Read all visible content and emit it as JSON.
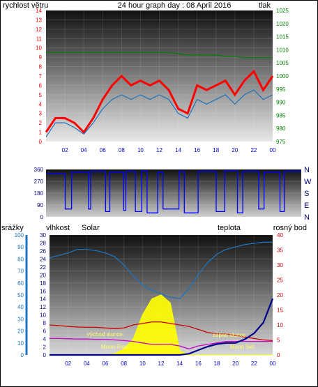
{
  "colors": {
    "wind": "#ff0000",
    "wind_avg": "#1e73be",
    "pressure": "#008000",
    "direction": "#0000ff",
    "rain": "#00008b",
    "humidity": "#1e73be",
    "solar": "#ffff00",
    "temperature": "#cc0000",
    "dewpoint": "#cc00cc",
    "title": "#0000cc",
    "axis_left": "#ff0000",
    "axis_right": "#008000"
  },
  "chart_data": [
    {
      "type": "line",
      "title": "24 hour graph day : 08 April 2016",
      "ylabel_left": "rychlost větru",
      "ylabel_right": "tlak",
      "ylim_left": [
        0,
        14
      ],
      "ylim_right": [
        975,
        1025
      ],
      "left_ticks": [
        "0",
        "1",
        "2",
        "3",
        "4",
        "5",
        "6",
        "7",
        "8",
        "9",
        "10",
        "11",
        "12",
        "13",
        "14"
      ],
      "right_ticks": [
        "975",
        "980",
        "985",
        "990",
        "995",
        "1000",
        "1005",
        "1010",
        "1015",
        "1020",
        "1025"
      ],
      "x_ticks": [
        "02",
        "04",
        "06",
        "08",
        "10",
        "12",
        "14",
        "16",
        "18",
        "20",
        "22",
        "00"
      ],
      "hours": [
        0,
        1,
        2,
        3,
        4,
        5,
        6,
        7,
        8,
        9,
        10,
        11,
        12,
        13,
        14,
        15,
        16,
        17,
        18,
        19,
        20,
        21,
        22,
        23,
        24
      ],
      "series": [
        {
          "name": "rychlost větru",
          "axis": "left",
          "values": [
            1,
            2.5,
            2.5,
            2,
            1,
            2.5,
            4.5,
            6,
            7,
            6,
            6.5,
            6,
            6.5,
            5.5,
            3.5,
            3,
            6,
            5.5,
            6,
            6.5,
            5,
            6.5,
            7.5,
            5.5,
            7
          ]
        },
        {
          "name": "",
          "axis": "left",
          "values": [
            0.5,
            2,
            2,
            1.5,
            0.8,
            2,
            3.5,
            4.5,
            5,
            4.5,
            5,
            4.5,
            5,
            4.5,
            3,
            2.5,
            4.5,
            4,
            4.5,
            5,
            4,
            5,
            5.5,
            4.5,
            5
          ]
        },
        {
          "name": "tlak",
          "axis": "right",
          "values": [
            1009,
            1009,
            1009,
            1009,
            1009,
            1009,
            1009,
            1009,
            1009,
            1009,
            1009,
            1009,
            1009,
            1009,
            1008.5,
            1008,
            1008,
            1008,
            1008,
            1007.5,
            1007.5,
            1007,
            1007,
            1007,
            1007
          ]
        }
      ]
    },
    {
      "type": "line",
      "ylim": [
        0,
        360
      ],
      "left_ticks": [
        "0",
        "90",
        "180",
        "270",
        "360"
      ],
      "right_labels": [
        "N",
        "W",
        "S",
        "E",
        "N"
      ],
      "series": [
        {
          "name": "",
          "hours": [
            0,
            1.8,
            1.8,
            2.4,
            2.4,
            4,
            4,
            4.2,
            4.2,
            5.6,
            5.6,
            6,
            6,
            7.3,
            7.3,
            7.5,
            7.5,
            8.4,
            8.4,
            9,
            9,
            9.5,
            9.5,
            10.5,
            10.5,
            11,
            11,
            12.5,
            12.5,
            13,
            13,
            14.3,
            14.3,
            16,
            16,
            16.8,
            16.8,
            18,
            18,
            18.5,
            18.5,
            20,
            20,
            20.5,
            20.5,
            22,
            22,
            22.4,
            22.4,
            24
          ],
          "values": [
            330,
            330,
            60,
            60,
            340,
            340,
            60,
            60,
            345,
            345,
            40,
            40,
            340,
            340,
            50,
            50,
            345,
            345,
            40,
            40,
            350,
            350,
            30,
            30,
            340,
            340,
            60,
            60,
            345,
            345,
            30,
            30,
            345,
            345,
            40,
            40,
            350,
            350,
            30,
            30,
            345,
            345,
            60,
            60,
            340,
            340,
            40,
            40,
            345,
            345
          ]
        }
      ]
    },
    {
      "type": "area",
      "ylabel_left": "srážky",
      "ylabel_humidity": "vlhkost",
      "ylabel_solar": "Solar",
      "ylabel_temp": "teplota",
      "ylabel_dew": "rosný bod",
      "left_ticks": [
        "0",
        "10",
        "20",
        "30",
        "40",
        "50",
        "60",
        "70",
        "80",
        "90",
        "100"
      ],
      "second_ticks": [
        "0",
        "2",
        "4",
        "6",
        "8",
        "10",
        "12",
        "14",
        "16",
        "18",
        "20",
        "22",
        "24",
        "26",
        "28",
        "30"
      ],
      "right_ticks": [
        "0",
        "5",
        "10",
        "15",
        "20",
        "25",
        "30",
        "35",
        "40"
      ],
      "x_ticks": [
        "02",
        "04",
        "06",
        "08",
        "10",
        "12",
        "14",
        "16",
        "18",
        "20",
        "22",
        "00"
      ],
      "annotations": [
        "východ slunce",
        "Moon Rise",
        "západ slunce",
        "Moon Set"
      ],
      "hours": [
        0,
        1,
        2,
        3,
        4,
        5,
        6,
        7,
        8,
        9,
        10,
        11,
        12,
        13,
        14,
        15,
        16,
        17,
        18,
        19,
        20,
        21,
        22,
        23,
        24
      ],
      "series": [
        {
          "name": "vlhkost",
          "axis": "humidity_pct",
          "values": [
            81,
            83,
            85,
            88,
            88,
            87,
            85,
            82,
            75,
            66,
            58,
            54,
            51,
            48,
            47,
            55,
            67,
            77,
            84,
            88,
            90,
            92,
            93,
            94,
            94
          ]
        },
        {
          "name": "Solar",
          "axis": "solar",
          "values": [
            0,
            0,
            0,
            0,
            0,
            0,
            0,
            0.3,
            1.5,
            4,
            10,
            14,
            15,
            13,
            1,
            0,
            0,
            0,
            0,
            0,
            0,
            0,
            0,
            0,
            0
          ]
        },
        {
          "name": "teplota",
          "axis": "temperature",
          "values": [
            10,
            9.8,
            9.5,
            9.3,
            9.2,
            9.2,
            9,
            8.8,
            9,
            10,
            10.5,
            11,
            11,
            10.5,
            10,
            9.5,
            8.5,
            7.5,
            7,
            7,
            6.5,
            6,
            5.5,
            5,
            4.8
          ]
        },
        {
          "name": "rosný bod",
          "axis": "temperature",
          "values": [
            5.5,
            5.5,
            5.4,
            5.3,
            5.3,
            5.2,
            5.2,
            5,
            4.8,
            4.5,
            4,
            3.5,
            3.5,
            3.5,
            3,
            2,
            3,
            3.5,
            4,
            4.5,
            4.5,
            4.5,
            4.5,
            4.5,
            4.5
          ]
        },
        {
          "name": "srážky",
          "axis": "rain_pct",
          "values": [
            0,
            0,
            0,
            0,
            0,
            0,
            0,
            0,
            0,
            0,
            0,
            0,
            0,
            0,
            0,
            1,
            4,
            7,
            9,
            10,
            10,
            13,
            18,
            27,
            47
          ]
        }
      ]
    }
  ]
}
